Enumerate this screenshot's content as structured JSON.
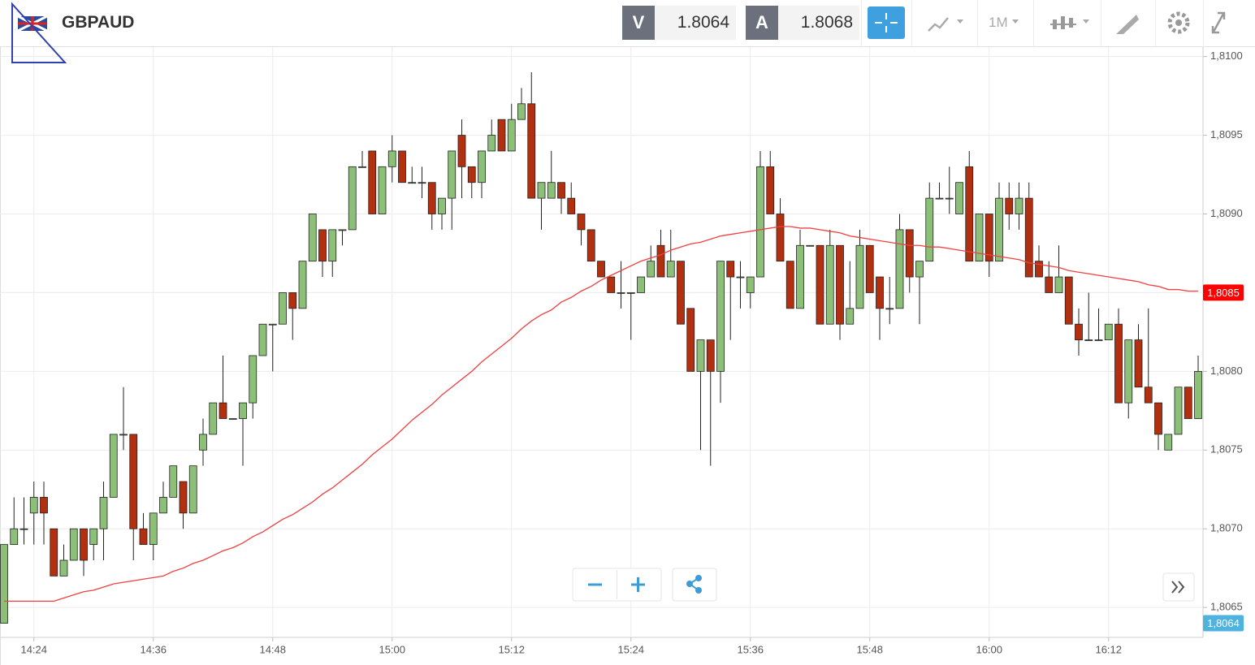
{
  "header": {
    "symbol": "GBPAUD",
    "bid_label": "V",
    "bid": "1.8064",
    "ask_label": "A",
    "ask": "1.8068",
    "timeframe": "1M"
  },
  "chart_data": {
    "type": "candlestick",
    "categories": [
      null,
      null,
      null,
      "14:24",
      null,
      null,
      null,
      null,
      null,
      null,
      null,
      null,
      null,
      null,
      null,
      "14:36",
      null,
      null,
      null,
      null,
      null,
      null,
      null,
      null,
      null,
      null,
      null,
      "14:48",
      null,
      null,
      null,
      null,
      null,
      null,
      null,
      null,
      null,
      null,
      null,
      "15:00",
      null,
      null,
      null,
      null,
      null,
      null,
      null,
      null,
      null,
      null,
      null,
      "15:12",
      null,
      null,
      null,
      null,
      null,
      null,
      null,
      null,
      null,
      null,
      null,
      "15:24",
      null,
      null,
      null,
      null,
      null,
      null,
      null,
      null,
      null,
      null,
      null,
      "15:36",
      null,
      null,
      null,
      null,
      null,
      null,
      null,
      null,
      null,
      null,
      null,
      "15:48",
      null,
      null,
      null,
      null,
      null,
      null,
      null,
      null,
      null,
      null,
      null,
      "16:00",
      null,
      null,
      null,
      null,
      null,
      null,
      null,
      null,
      null,
      null,
      null,
      "16:12",
      null,
      null,
      null,
      null,
      null,
      null,
      null,
      null,
      null
    ],
    "open": [
      1.8064,
      1.8069,
      1.807,
      1.8071,
      1.8072,
      1.807,
      1.8067,
      1.8068,
      1.807,
      1.8069,
      1.807,
      1.8072,
      1.8076,
      1.8076,
      1.807,
      1.8069,
      1.8071,
      1.8072,
      1.8073,
      1.8071,
      1.8075,
      1.8076,
      1.8078,
      1.8077,
      1.8077,
      1.8078,
      1.8081,
      1.8083,
      1.8083,
      1.8085,
      1.8084,
      1.8087,
      1.8089,
      1.8087,
      1.8089,
      1.8089,
      1.8093,
      1.8094,
      1.809,
      1.8093,
      1.8094,
      1.8092,
      1.8092,
      1.8092,
      1.809,
      1.8091,
      1.8095,
      1.8093,
      1.8092,
      1.8094,
      1.8096,
      1.8094,
      1.8096,
      1.8097,
      1.8091,
      1.8091,
      1.8092,
      1.8091,
      1.809,
      1.8089,
      1.8087,
      1.8086,
      1.8085,
      1.8085,
      1.8085,
      1.8086,
      1.8088,
      1.8086,
      1.8087,
      1.8084,
      1.808,
      1.8082,
      1.808,
      1.8087,
      1.8086,
      1.8085,
      1.8086,
      1.8093,
      1.809,
      1.8087,
      1.8084,
      1.8088,
      1.8088,
      1.8083,
      1.8088,
      1.8083,
      1.8084,
      1.8088,
      1.8086,
      1.8084,
      1.8084,
      1.8089,
      1.8086,
      1.8087,
      1.8091,
      1.8091,
      1.809,
      1.8093,
      1.8087,
      1.809,
      1.8087,
      1.8091,
      1.809,
      1.8091,
      1.8087,
      1.8086,
      1.8085,
      1.8086,
      1.8083,
      1.8082,
      1.8082,
      1.8082,
      1.8083,
      1.8078,
      1.8082,
      1.8079,
      1.8078,
      1.8075,
      1.8076,
      1.8079,
      1.8077
    ],
    "high": [
      1.8069,
      1.8072,
      1.8072,
      1.8073,
      1.8073,
      1.807,
      1.8069,
      1.807,
      1.807,
      1.807,
      1.8073,
      1.8076,
      1.8079,
      1.8076,
      1.8071,
      1.8071,
      1.8073,
      1.8074,
      1.8073,
      1.8074,
      1.8077,
      1.8078,
      1.8081,
      1.8077,
      1.8078,
      1.8081,
      1.8083,
      1.8083,
      1.8085,
      1.8085,
      1.8087,
      1.809,
      1.8089,
      1.8089,
      1.8089,
      1.8093,
      1.8094,
      1.8094,
      1.8093,
      1.8095,
      1.8094,
      1.8093,
      1.8093,
      1.8092,
      1.8091,
      1.8094,
      1.8096,
      1.8093,
      1.8094,
      1.8096,
      1.8096,
      1.8097,
      1.8098,
      1.8099,
      1.8092,
      1.8094,
      1.8092,
      1.8092,
      1.809,
      1.8089,
      1.8087,
      1.8086,
      1.8087,
      1.8085,
      1.8086,
      1.8088,
      1.8089,
      1.8089,
      1.8087,
      1.8084,
      1.8082,
      1.8082,
      1.8087,
      1.8087,
      1.8087,
      1.8086,
      1.8094,
      1.8094,
      1.8091,
      1.8087,
      1.8089,
      1.8088,
      1.8088,
      1.8089,
      1.8088,
      1.8087,
      1.8089,
      1.8088,
      1.8086,
      1.8086,
      1.809,
      1.8089,
      1.8087,
      1.8092,
      1.8092,
      1.8093,
      1.8092,
      1.8094,
      1.809,
      1.809,
      1.8092,
      1.8092,
      1.8092,
      1.8092,
      1.8088,
      1.8087,
      1.8088,
      1.8086,
      1.8084,
      1.8085,
      1.8084,
      1.8083,
      1.8084,
      1.8082,
      1.8083,
      1.8084,
      1.8078,
      1.8076,
      1.8079,
      1.8079,
      1.8081
    ],
    "low": [
      1.8064,
      1.8069,
      1.8069,
      1.8069,
      1.8069,
      1.8067,
      1.8067,
      1.8068,
      1.8067,
      1.8068,
      1.8068,
      1.8072,
      1.8075,
      1.8068,
      1.8069,
      1.8068,
      1.8071,
      1.8072,
      1.807,
      1.8071,
      1.8074,
      1.8076,
      1.8077,
      1.8077,
      1.8074,
      1.8077,
      1.8081,
      1.808,
      1.8083,
      1.8082,
      1.8084,
      1.8087,
      1.8086,
      1.8086,
      1.8088,
      1.8089,
      1.8093,
      1.809,
      1.809,
      1.8092,
      1.8092,
      1.8092,
      1.8091,
      1.8089,
      1.8089,
      1.8089,
      1.8091,
      1.8091,
      1.8091,
      1.8094,
      1.8094,
      1.8094,
      1.8096,
      1.8091,
      1.8089,
      1.8091,
      1.809,
      1.809,
      1.8088,
      1.8087,
      1.8086,
      1.8085,
      1.8084,
      1.8082,
      1.8085,
      1.8086,
      1.8086,
      1.8086,
      1.8083,
      1.808,
      1.8075,
      1.8074,
      1.8078,
      1.8082,
      1.8084,
      1.8084,
      1.8086,
      1.809,
      1.8087,
      1.8084,
      1.8084,
      1.8088,
      1.8083,
      1.8083,
      1.8082,
      1.8083,
      1.8084,
      1.8085,
      1.8082,
      1.8083,
      1.8084,
      1.8085,
      1.8083,
      1.8087,
      1.8091,
      1.809,
      1.809,
      1.8087,
      1.8087,
      1.8086,
      1.8087,
      1.8089,
      1.8089,
      1.8086,
      1.8086,
      1.8085,
      1.8085,
      1.8083,
      1.8081,
      1.8082,
      1.8082,
      1.8082,
      1.8078,
      1.8077,
      1.8079,
      1.8078,
      1.8075,
      1.8075,
      1.8076,
      1.8077,
      1.8077
    ],
    "close": [
      1.8069,
      1.807,
      1.807,
      1.8072,
      1.8071,
      1.8067,
      1.8068,
      1.807,
      1.8068,
      1.807,
      1.8072,
      1.8076,
      1.8076,
      1.807,
      1.8069,
      1.8071,
      1.8072,
      1.8074,
      1.8071,
      1.8074,
      1.8076,
      1.8078,
      1.8077,
      1.8077,
      1.8078,
      1.8081,
      1.8083,
      1.8083,
      1.8085,
      1.8084,
      1.8087,
      1.809,
      1.8087,
      1.8089,
      1.8089,
      1.8093,
      1.8093,
      1.809,
      1.8093,
      1.8094,
      1.8092,
      1.8092,
      1.8092,
      1.809,
      1.8091,
      1.8094,
      1.8093,
      1.8092,
      1.8094,
      1.8095,
      1.8094,
      1.8096,
      1.8097,
      1.8091,
      1.8092,
      1.8092,
      1.8091,
      1.809,
      1.8089,
      1.8087,
      1.8086,
      1.8085,
      1.8085,
      1.8085,
      1.8086,
      1.8087,
      1.8086,
      1.8087,
      1.8083,
      1.808,
      1.8082,
      1.808,
      1.8087,
      1.8086,
      1.8086,
      1.8086,
      1.8093,
      1.809,
      1.8087,
      1.8084,
      1.8088,
      1.8088,
      1.8083,
      1.8088,
      1.8083,
      1.8084,
      1.8088,
      1.8085,
      1.8084,
      1.8084,
      1.8089,
      1.8086,
      1.8087,
      1.8091,
      1.8091,
      1.8091,
      1.8092,
      1.8087,
      1.809,
      1.8087,
      1.8091,
      1.809,
      1.8091,
      1.8086,
      1.8086,
      1.8085,
      1.8086,
      1.8083,
      1.8082,
      1.8082,
      1.8082,
      1.8083,
      1.8078,
      1.8082,
      1.8079,
      1.8078,
      1.8076,
      1.8076,
      1.8079,
      1.8077,
      1.808
    ],
    "up_color": "#8cbf78",
    "down_color": "#b2300f",
    "moving_average": {
      "color": "#f04040",
      "values": [
        1.80654,
        1.80654,
        1.80654,
        1.80654,
        1.80654,
        1.80654,
        1.80656,
        1.80658,
        1.8066,
        1.80661,
        1.80663,
        1.80665,
        1.80666,
        1.80667,
        1.80668,
        1.80669,
        1.8067,
        1.80673,
        1.80675,
        1.80678,
        1.8068,
        1.80683,
        1.80686,
        1.80688,
        1.80691,
        1.80695,
        1.80698,
        1.80702,
        1.80706,
        1.80709,
        1.80713,
        1.80717,
        1.80722,
        1.80726,
        1.80731,
        1.80736,
        1.80741,
        1.80747,
        1.80752,
        1.80757,
        1.80763,
        1.80769,
        1.80774,
        1.80779,
        1.80785,
        1.8079,
        1.80795,
        1.808,
        1.80806,
        1.80811,
        1.80816,
        1.80821,
        1.80827,
        1.80832,
        1.80836,
        1.80839,
        1.80844,
        1.80847,
        1.80851,
        1.80854,
        1.80858,
        1.80861,
        1.80864,
        1.80867,
        1.8087,
        1.80872,
        1.80874,
        1.80877,
        1.80879,
        1.80881,
        1.80882,
        1.80884,
        1.80886,
        1.80887,
        1.80888,
        1.80889,
        1.8089,
        1.80891,
        1.80892,
        1.80892,
        1.80891,
        1.80891,
        1.8089,
        1.80889,
        1.80888,
        1.80886,
        1.80885,
        1.80884,
        1.80883,
        1.80882,
        1.80881,
        1.8088,
        1.8088,
        1.80879,
        1.80879,
        1.80878,
        1.80877,
        1.80876,
        1.80875,
        1.80874,
        1.80873,
        1.80872,
        1.80871,
        1.80869,
        1.80868,
        1.80867,
        1.80866,
        1.80864,
        1.80863,
        1.80862,
        1.80861,
        1.8086,
        1.80859,
        1.80858,
        1.80857,
        1.80855,
        1.80854,
        1.80852,
        1.80852,
        1.80851,
        1.80851
      ]
    },
    "price_labels": [
      {
        "value": 1.8085,
        "label": "1,8085",
        "color": "#ff0000"
      },
      {
        "value": 1.8064,
        "label": "1,8064",
        "color": "#4fb3e0"
      }
    ],
    "ylim": [
      1.80631,
      1.81006
    ],
    "yticks": [
      {
        "value": 1.8065,
        "label": "1,8065"
      },
      {
        "value": 1.807,
        "label": "1,8070"
      },
      {
        "value": 1.8075,
        "label": "1,8075"
      },
      {
        "value": 1.808,
        "label": "1,8080"
      },
      {
        "value": 1.8085,
        "label": "1,8085"
      },
      {
        "value": 1.809,
        "label": "1,8090"
      },
      {
        "value": 1.8095,
        "label": "1,8095"
      },
      {
        "value": 1.81,
        "label": "1,8100"
      }
    ],
    "grid": true
  }
}
